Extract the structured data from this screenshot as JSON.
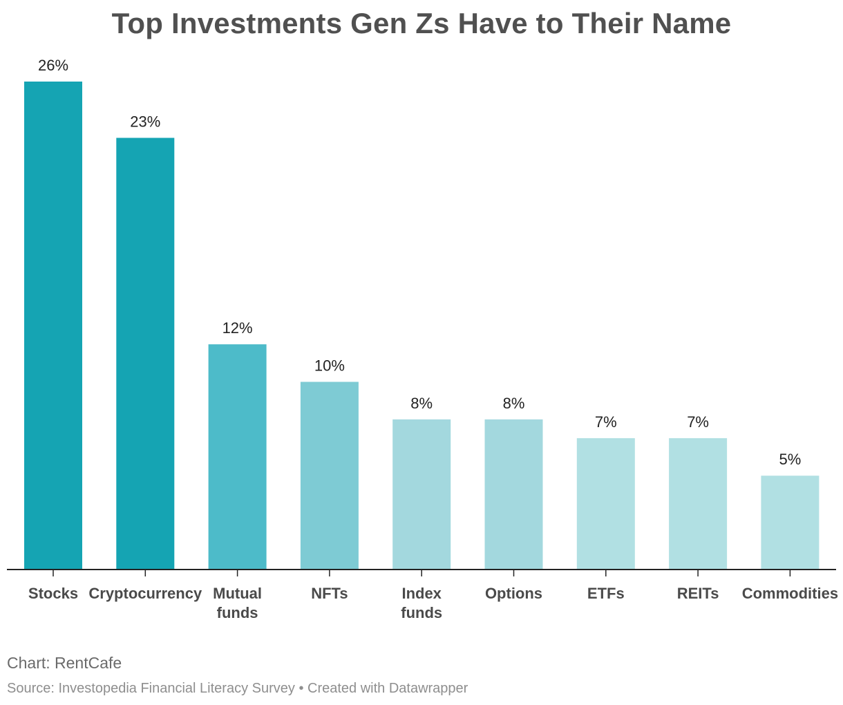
{
  "title": "Top Investments Gen Zs Have to Their Name",
  "footer": {
    "credit": "Chart: RentCafe",
    "source": "Source: Investopedia Financial Literacy Survey • Created with Datawrapper"
  },
  "chart_data": {
    "type": "bar",
    "title": "Top Investments Gen Zs Have to Their Name",
    "categories": [
      [
        "Stocks"
      ],
      [
        "Cryptocurrency"
      ],
      [
        "Mutual",
        "funds"
      ],
      [
        "NFTs"
      ],
      [
        "Index",
        "funds"
      ],
      [
        "Options"
      ],
      [
        "ETFs"
      ],
      [
        "REITs"
      ],
      [
        "Commodities"
      ]
    ],
    "values": [
      26,
      23,
      12,
      10,
      8,
      8,
      7,
      7,
      5
    ],
    "value_labels": [
      "26%",
      "23%",
      "12%",
      "10%",
      "8%",
      "8%",
      "7%",
      "7%",
      "5%"
    ],
    "colors": [
      "#15a4b3",
      "#15a4b3",
      "#4dbbc9",
      "#7ecbd4",
      "#a3d8de",
      "#a3d8de",
      "#b1e0e3",
      "#b1e0e3",
      "#b1e0e3"
    ],
    "ylim": [
      0,
      26
    ],
    "grid": false,
    "xlabel": "",
    "ylabel": ""
  }
}
